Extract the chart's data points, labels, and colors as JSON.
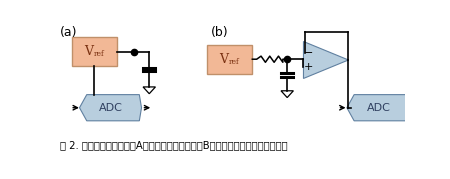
{
  "caption": "图 2. 电压基准通常需要（A）一只旁路电容，或（B）一只带缓冲放大器的电容。",
  "vref_color": "#f2b896",
  "adc_color": "#b8cede",
  "opamp_color": "#b8cede",
  "bg_color": "#ffffff",
  "label_a": "(a)",
  "label_b": "(b)",
  "adc_text": "ADC",
  "opamp_minus": "−",
  "opamp_plus": "+"
}
